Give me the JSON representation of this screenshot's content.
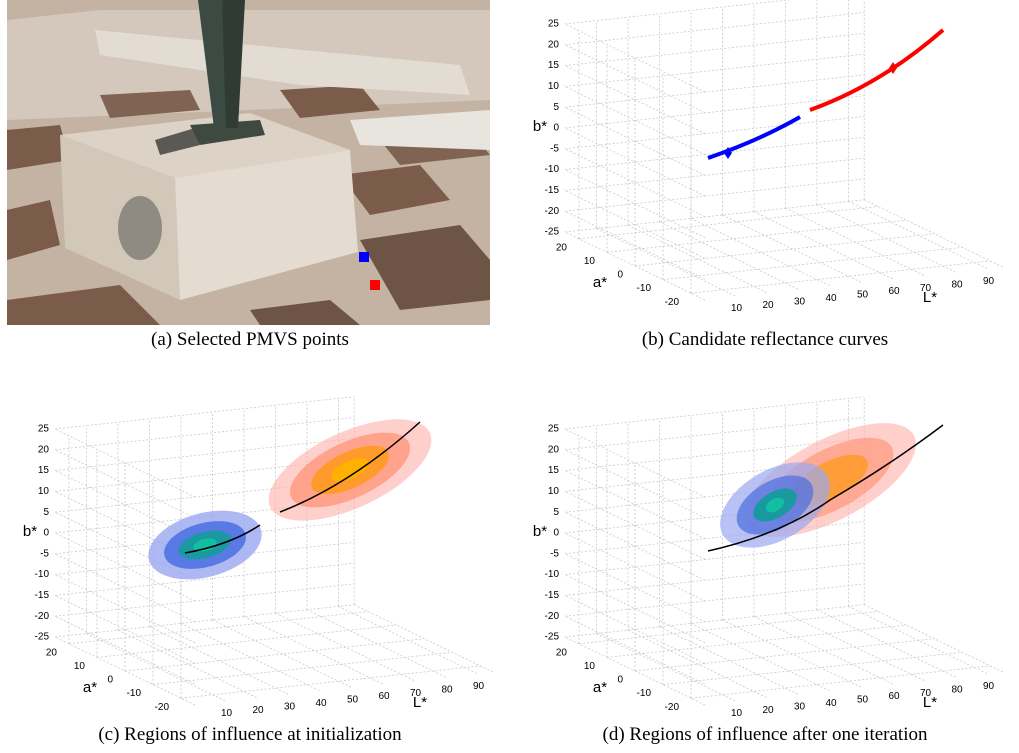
{
  "panels": [
    {
      "caption": "(a) Selected PMVS points"
    },
    {
      "caption": "(b) Candidate reflectance curves",
      "axes": {
        "x_label": "L*",
        "y_label": "a*",
        "z_label": "b*",
        "xticks": [
          10,
          20,
          30,
          40,
          50,
          60,
          70,
          80,
          90
        ],
        "yticks": [
          -20,
          -10,
          0,
          10,
          20
        ],
        "zticks": [
          -25,
          -20,
          -15,
          -10,
          -5,
          0,
          5,
          10,
          15,
          20,
          25
        ]
      }
    },
    {
      "caption": "(c) Regions of influence at initialization",
      "axes": {
        "x_label": "L*",
        "y_label": "a*",
        "z_label": "b*",
        "xticks": [
          10,
          20,
          30,
          40,
          50,
          60,
          70,
          80,
          90
        ],
        "yticks": [
          -20,
          -10,
          0,
          10,
          20
        ],
        "zticks": [
          -25,
          -20,
          -15,
          -10,
          -5,
          0,
          5,
          10,
          15,
          20,
          25
        ]
      }
    },
    {
      "caption": "(d) Regions of influence after one iteration",
      "axes": {
        "x_label": "L*",
        "y_label": "a*",
        "z_label": "b*",
        "xticks": [
          10,
          20,
          30,
          40,
          50,
          60,
          70,
          80,
          90
        ],
        "yticks": [
          -20,
          -10,
          0,
          10,
          20
        ],
        "zticks": [
          -25,
          -20,
          -15,
          -10,
          -5,
          0,
          5,
          10,
          15,
          20,
          25
        ]
      }
    }
  ]
}
